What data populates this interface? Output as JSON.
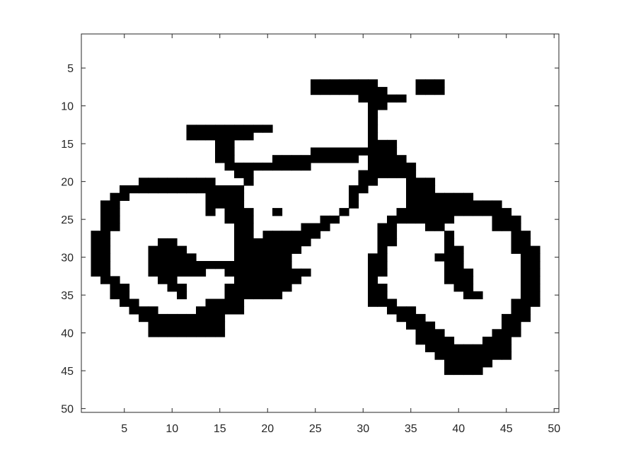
{
  "chart_data": {
    "type": "heatmap",
    "title": "",
    "xlabel": "",
    "ylabel": "",
    "xlim": [
      0.5,
      50.5
    ],
    "ylim": [
      0.5,
      50.5
    ],
    "y_reversed": true,
    "xticks": [
      5,
      10,
      15,
      20,
      25,
      30,
      35,
      40,
      45,
      50
    ],
    "yticks": [
      5,
      10,
      15,
      20,
      25,
      30,
      35,
      40,
      45,
      50
    ],
    "grid": false,
    "colormap": {
      "0": "#ffffff",
      "1": "#000000"
    },
    "rows": [
      [
        "1-50",
        "00000000000000000000000000000000000000000000000000"
      ],
      [
        "2-6",
        "00000000000000000000000000000000000000000000000000"
      ],
      [
        "7",
        "00000000000000000000000011111110000111000000000000"
      ],
      [
        "8",
        "00000000000000000000000011111111000111000000000000"
      ],
      [
        "9",
        "00000000000000000000000000000111110000000000000000"
      ],
      [
        "10",
        "00000000000000000000000000000011000000000000000000"
      ],
      [
        "11",
        "00000000000000000000000000000010000000000000000000"
      ],
      [
        "12",
        "00000000000000000000000000000010000000000000000000"
      ],
      [
        "13",
        "00000000000111111111000000000010000000000000000000"
      ],
      [
        "14",
        "00000000000111111100000000000010000000000000000000"
      ],
      [
        "15",
        "00000000000000110000000000000011100000000000000000"
      ],
      [
        "16",
        "00000000000000110000000011111111100000000000000000"
      ],
      [
        "17",
        "00000000000000110000111111111011110000000000000000"
      ],
      [
        "18",
        "00000000000000011111111100000011111000000000000000"
      ],
      [
        "19",
        "00000000000000001100000000000111111000000000000000"
      ],
      [
        "20",
        "00000011111111000100000000000110001110000000000000"
      ],
      [
        "21",
        "00001111111111111000000000001100001110000000000000"
      ],
      [
        "22",
        "00011000000001111000000000001000001111111000000000"
      ],
      [
        "23",
        "00110000000001111000000000001000001111111111000000"
      ],
      [
        "24",
        "00110000000001011100100000010000011111111111100000"
      ],
      [
        "25",
        "00110000000000011100000001100000111111100001110000"
      ],
      [
        "26",
        "00110000000000001100000111000001100011000001110000"
      ],
      [
        "27",
        "01100000000000001101111110000001100000100000011000"
      ],
      [
        "28",
        "01100000110000001111111100000001100000100000011000"
      ],
      [
        "29",
        "01100001111000001111111000000001000000110000011100"
      ],
      [
        "30",
        "01100001111100001111110000000011000001110000001100"
      ],
      [
        "31",
        "01100001111111111111110000000011000000110000001100"
      ],
      [
        "32",
        "01100001111110011111111100000011000000111000001100"
      ],
      [
        "33",
        "00110000110000001111111000000010000000111000001100"
      ],
      [
        "34",
        "00011000011000011111110000000011000000011000001100"
      ],
      [
        "35",
        "00011000001000011111100000000011000000001100001100"
      ],
      [
        "36",
        "00001100000001111000000000000011100000000000011100"
      ],
      [
        "37",
        "00000111000011111000000000000000111000000000011000"
      ],
      [
        "38",
        "00000011111111100000000000000000011100000000111000"
      ],
      [
        "39",
        "00000001111111100000000000000000001110000000110000"
      ],
      [
        "40",
        "00000001111111100000000000000000000111000001110000"
      ],
      [
        "41",
        "00000000000000000000000000000000000111100011100000"
      ],
      [
        "42",
        "00000000000000000000000000000000000011111111100000"
      ],
      [
        "43",
        "00000000000000000000000000000000000001111111100000"
      ],
      [
        "44",
        "00000000000000000000000000000000000000111110000000"
      ],
      [
        "45",
        "00000000000000000000000000000000000000111100000000"
      ]
    ]
  }
}
